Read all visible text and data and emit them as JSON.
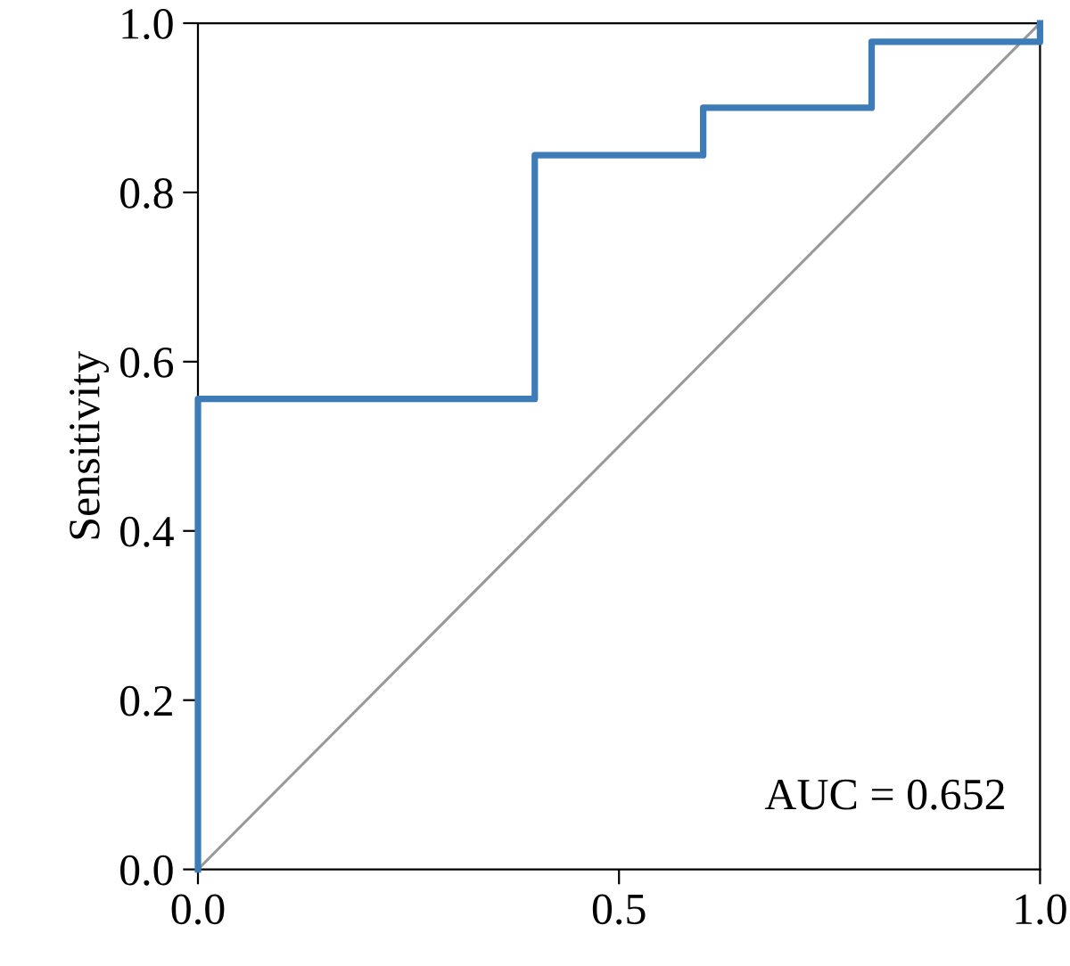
{
  "chart_data": {
    "type": "line",
    "ylabel": "Sensitivity",
    "series": [
      {
        "color": "#3e7cb8",
        "x": [
          0,
          0,
          0.4,
          0.4,
          0.6,
          0.6,
          0.8,
          0.8,
          1.0,
          1.0
        ],
        "values": [
          0,
          0.556,
          0.556,
          0.844,
          0.844,
          0.9,
          0.9,
          0.978,
          0.978,
          1.0
        ]
      },
      {
        "color": "#999999",
        "x": [
          0,
          1
        ],
        "values": [
          0,
          1
        ]
      }
    ],
    "annotations": [
      "AUC = 0.652"
    ],
    "xlim": [
      0,
      1
    ],
    "ylim": [
      0,
      1
    ],
    "xticks": [
      {
        "value": 0,
        "label": "0.0"
      },
      0.5,
      {
        "value": 1,
        "label": "1.0"
      }
    ],
    "yticks": [
      {
        "value": 0,
        "label": "0.0"
      },
      0.2,
      0.4,
      0.6,
      0.8,
      {
        "value": 1,
        "label": "1.0"
      }
    ],
    "grid": false
  }
}
